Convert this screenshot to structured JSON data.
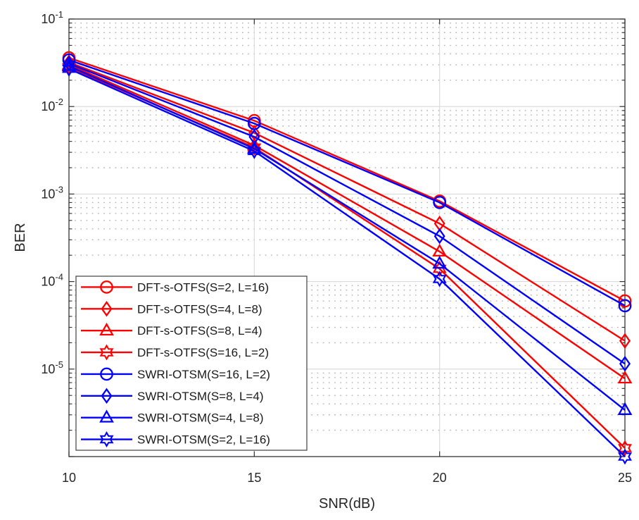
{
  "chart_data": {
    "type": "line",
    "title": "",
    "xlabel": "SNR(dB)",
    "ylabel": "BER",
    "x": [
      10,
      15,
      20,
      25
    ],
    "xlim": [
      10,
      25
    ],
    "ylim": [
      1e-06,
      0.1
    ],
    "xticks": [
      "10",
      "15",
      "20",
      "25"
    ],
    "ytick_exponents": [
      -1,
      -2,
      -3,
      -4,
      -5
    ],
    "ytick_base": "10",
    "grid": true,
    "minor_grid": true,
    "legend_position": "lower-left",
    "colors": {
      "red_series": "#FF0000",
      "blue_series": "#0000FF",
      "axis": "#333333",
      "tick_label": "#262626",
      "major_grid": "#d9d9d9",
      "minor_grid": "#aeaeae",
      "legend_border": "#4d4d4d",
      "legend_text": "#1a1a1a"
    },
    "series": [
      {
        "name": "DFT-s-OTFS(S=2, L=16)",
        "color": "#FF0000",
        "marker": "circle",
        "values": [
          0.036,
          0.0069,
          0.00083,
          6e-05
        ]
      },
      {
        "name": "DFT-s-OTFS(S=4, L=8)",
        "color": "#FF0000",
        "marker": "diamond",
        "values": [
          0.032,
          0.005,
          0.00046,
          2.1e-05
        ]
      },
      {
        "name": "DFT-s-OTFS(S=8, L=4)",
        "color": "#FF0000",
        "marker": "triangle",
        "values": [
          0.03,
          0.0036,
          0.00022,
          7.8e-06
        ]
      },
      {
        "name": "DFT-s-OTFS(S=16, L=2)",
        "color": "#FF0000",
        "marker": "hexagram",
        "values": [
          0.028,
          0.0034,
          0.00014,
          1.25e-06
        ]
      },
      {
        "name": "SWRI-OTSM(S=16, L=2)",
        "color": "#0000FF",
        "marker": "circle",
        "values": [
          0.034,
          0.0064,
          0.0008,
          5.3e-05
        ]
      },
      {
        "name": "SWRI-OTSM(S=8, L=4)",
        "color": "#0000FF",
        "marker": "diamond",
        "values": [
          0.031,
          0.0045,
          0.00033,
          1.15e-05
        ]
      },
      {
        "name": "SWRI-OTSM(S=4, L=8)",
        "color": "#0000FF",
        "marker": "triangle",
        "values": [
          0.029,
          0.0033,
          0.00016,
          3.4e-06
        ]
      },
      {
        "name": "SWRI-OTSM(S=2, L=16)",
        "color": "#0000FF",
        "marker": "hexagram",
        "values": [
          0.027,
          0.0031,
          0.000107,
          1e-06
        ]
      }
    ]
  }
}
